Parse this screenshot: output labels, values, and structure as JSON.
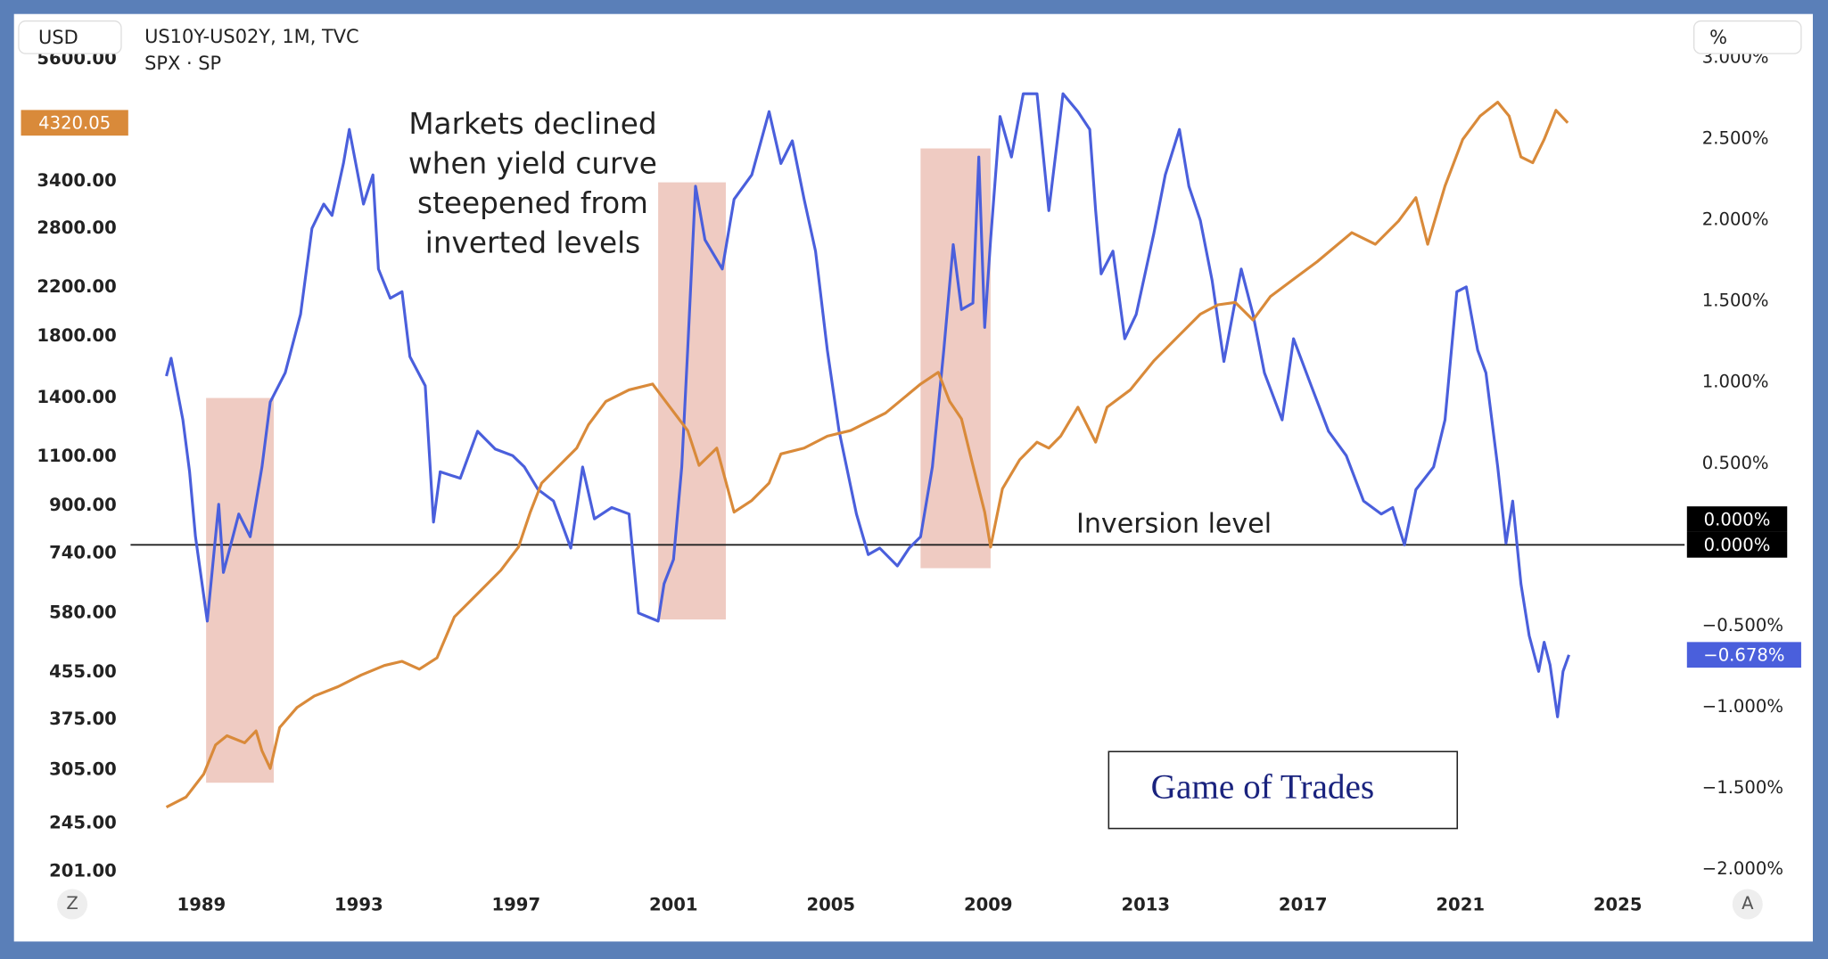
{
  "header": {
    "left_unit": "USD",
    "right_unit": "%",
    "symbol_line": "US10Y-US02Y, 1M, TVC",
    "symbol_line2": "SPX · SP",
    "left_button": "Z",
    "right_button": "A"
  },
  "chart_data": {
    "type": "line",
    "annotation": [
      "Markets declined",
      "when yield curve",
      "steepened from",
      "inverted levels"
    ],
    "watermark": "Game of Trades",
    "xlim": [
      1987.2,
      2026.7
    ],
    "xticks": [
      1989,
      1993,
      1997,
      2001,
      2005,
      2009,
      2013,
      2017,
      2021,
      2025
    ],
    "ylim": [
      190,
      6650
    ],
    "ylog": true,
    "yticks": [
      {
        "value": 201,
        "label": "201.00"
      },
      {
        "value": 245,
        "label": "245.00"
      },
      {
        "value": 305,
        "label": "305.00"
      },
      {
        "value": 375,
        "label": "375.00"
      },
      {
        "value": 455,
        "label": "455.00"
      },
      {
        "value": 580,
        "label": "580.00"
      },
      {
        "value": 740,
        "label": "740.00"
      },
      {
        "value": 900,
        "label": "900.00"
      },
      {
        "value": 1100,
        "label": "1100.00"
      },
      {
        "value": 1400,
        "label": "1400.00"
      },
      {
        "value": 1800,
        "label": "1800.00"
      },
      {
        "value": 2200,
        "label": "2200.00"
      },
      {
        "value": 2800,
        "label": "2800.00"
      },
      {
        "value": 3400,
        "label": "3400.00"
      },
      {
        "value": 5600,
        "label": "5600.00"
      }
    ],
    "y2lim": [
      -2.1,
      3.25
    ],
    "y2ticks": [
      {
        "value": -2,
        "label": "−2.000%"
      },
      {
        "value": -1.5,
        "label": "−1.500%"
      },
      {
        "value": -1,
        "label": "−1.000%"
      },
      {
        "value": -0.5,
        "label": "−0.500%"
      },
      {
        "value": 0.5,
        "label": "0.500%"
      },
      {
        "value": 1,
        "label": "1.000%"
      },
      {
        "value": 1.5,
        "label": "1.500%"
      },
      {
        "value": 2,
        "label": "2.000%"
      },
      {
        "value": 2.5,
        "label": "2.500%"
      },
      {
        "value": 3,
        "label": "3.000%"
      }
    ],
    "grid": false,
    "reference_line": {
      "value": 0,
      "label": "Inversion level",
      "axis": "y2",
      "color": "#222222"
    },
    "level_labels": [
      {
        "value": 0,
        "label": "0.000%"
      },
      {
        "value": 0,
        "label": "0.000%"
      }
    ],
    "shaded_periods": [
      {
        "x": [
          1989.12,
          1990.84
        ],
        "y2": [
          -1.466,
          0.905
        ]
      },
      {
        "x": [
          2000.61,
          2002.33
        ],
        "y2": [
          -0.46,
          2.234
        ]
      },
      {
        "x": [
          2007.28,
          2009.06
        ],
        "y2": [
          -0.144,
          2.443
        ]
      }
    ],
    "shade_color": "#e9b9ad",
    "series": [
      {
        "name": "US10Y-US02Y",
        "color": "#4a5fdc",
        "axis": "y2",
        "last_label": "−0.678%",
        "x": [
          1988.11,
          1988.23,
          1988.53,
          1988.7,
          1988.85,
          1989.15,
          1989.44,
          1989.56,
          1989.8,
          1989.95,
          1990.24,
          1990.54,
          1990.75,
          1991.13,
          1991.52,
          1991.81,
          1992.11,
          1992.32,
          1992.61,
          1992.76,
          1993.12,
          1993.36,
          1993.5,
          1993.8,
          1994.1,
          1994.3,
          1994.69,
          1994.9,
          1995.07,
          1995.58,
          1996.02,
          1996.47,
          1996.91,
          1997.21,
          1997.56,
          1997.95,
          1998.39,
          1998.69,
          1998.99,
          1999.43,
          1999.87,
          2000.11,
          2000.61,
          2000.76,
          2001.0,
          2001.21,
          2001.36,
          2001.56,
          2001.8,
          2002.24,
          2002.54,
          2002.99,
          2003.43,
          2003.73,
          2004.02,
          2004.32,
          2004.61,
          2004.91,
          2005.21,
          2005.65,
          2005.95,
          2006.24,
          2006.69,
          2006.99,
          2007.28,
          2007.58,
          2007.87,
          2008.11,
          2008.32,
          2008.61,
          2008.76,
          2008.91,
          2009.06,
          2009.3,
          2009.59,
          2009.89,
          2010.24,
          2010.54,
          2010.9,
          2011.28,
          2011.58,
          2011.73,
          2011.87,
          2012.17,
          2012.47,
          2012.76,
          2013.21,
          2013.5,
          2013.86,
          2014.1,
          2014.39,
          2014.69,
          2014.99,
          2015.43,
          2015.73,
          2016.02,
          2016.47,
          2016.76,
          2017.21,
          2017.65,
          2018.1,
          2018.54,
          2018.99,
          2019.28,
          2019.58,
          2019.87,
          2020.32,
          2020.61,
          2020.91,
          2021.15,
          2021.44,
          2021.65,
          2021.95,
          2022.16,
          2022.33,
          2022.54,
          2022.75,
          2022.99,
          2023.13,
          2023.28,
          2023.47,
          2023.61,
          2023.76
        ],
        "values": [
          1.04,
          1.15,
          0.77,
          0.45,
          0.05,
          -0.47,
          0.25,
          -0.17,
          0.05,
          0.19,
          0.05,
          0.48,
          0.88,
          1.06,
          1.42,
          1.95,
          2.1,
          2.03,
          2.35,
          2.56,
          2.1,
          2.28,
          1.7,
          1.52,
          1.56,
          1.16,
          0.98,
          0.14,
          0.45,
          0.41,
          0.7,
          0.59,
          0.55,
          0.48,
          0.34,
          0.27,
          -0.02,
          0.48,
          0.16,
          0.23,
          0.19,
          -0.42,
          -0.47,
          -0.24,
          -0.09,
          0.48,
          1.2,
          2.21,
          1.88,
          1.7,
          2.13,
          2.28,
          2.67,
          2.35,
          2.49,
          2.13,
          1.81,
          1.2,
          0.7,
          0.19,
          -0.06,
          -0.02,
          -0.13,
          -0.02,
          0.05,
          0.48,
          1.2,
          1.85,
          1.45,
          1.49,
          2.39,
          1.34,
          1.88,
          2.64,
          2.39,
          2.78,
          2.78,
          2.06,
          2.78,
          2.67,
          2.56,
          2.06,
          1.67,
          1.81,
          1.27,
          1.42,
          1.92,
          2.28,
          2.56,
          2.21,
          2.0,
          1.63,
          1.13,
          1.7,
          1.42,
          1.06,
          0.77,
          1.27,
          0.98,
          0.7,
          0.55,
          0.27,
          0.19,
          0.23,
          0.0,
          0.34,
          0.48,
          0.77,
          1.56,
          1.59,
          1.2,
          1.06,
          0.48,
          0.01,
          0.27,
          -0.24,
          -0.56,
          -0.78,
          -0.6,
          -0.74,
          -1.06,
          -0.78,
          -0.678
        ]
      },
      {
        "name": "SPX",
        "color": "#d98a3a",
        "axis": "y",
        "last_label": "4320.05",
        "x": [
          1988.11,
          1988.61,
          1989.06,
          1989.36,
          1989.65,
          1990.1,
          1990.39,
          1990.54,
          1990.75,
          1990.99,
          1991.43,
          1991.87,
          1992.47,
          1993.06,
          1993.65,
          1994.1,
          1994.54,
          1994.99,
          1995.43,
          1996.02,
          1996.61,
          1997.06,
          1997.36,
          1997.65,
          1998.1,
          1998.54,
          1998.84,
          1999.28,
          1999.87,
          2000.47,
          2000.91,
          2001.36,
          2001.65,
          2002.1,
          2002.54,
          2002.99,
          2003.43,
          2003.73,
          2004.32,
          2004.91,
          2005.5,
          2006.39,
          2007.28,
          2007.73,
          2008.02,
          2008.32,
          2008.61,
          2008.91,
          2009.06,
          2009.36,
          2009.8,
          2010.24,
          2010.54,
          2010.84,
          2011.28,
          2011.58,
          2011.73,
          2012.02,
          2012.61,
          2013.21,
          2013.8,
          2014.39,
          2014.84,
          2015.28,
          2015.73,
          2016.17,
          2016.76,
          2017.36,
          2018.24,
          2018.84,
          2019.43,
          2019.87,
          2020.17,
          2020.61,
          2021.06,
          2021.5,
          2021.95,
          2022.24,
          2022.54,
          2022.84,
          2023.13,
          2023.43,
          2023.73
        ],
        "values": [
          262,
          273,
          300,
          338,
          351,
          341,
          358,
          330,
          307,
          363,
          394,
          413,
          429,
          450,
          468,
          476,
          461,
          483,
          571,
          628,
          691,
          760,
          877,
          988,
          1062,
          1140,
          1255,
          1380,
          1447,
          1482,
          1348,
          1225,
          1062,
          1140,
          877,
          920,
          988,
          1113,
          1140,
          1197,
          1225,
          1316,
          1482,
          1555,
          1380,
          1285,
          1062,
          877,
          760,
          965,
          1087,
          1168,
          1140,
          1197,
          1348,
          1225,
          1168,
          1348,
          1447,
          1630,
          1794,
          1973,
          2050,
          2070,
          1926,
          2120,
          2277,
          2446,
          2755,
          2627,
          2890,
          3180,
          2627,
          3335,
          4036,
          4440,
          4701,
          4440,
          3757,
          3668,
          4036,
          4547,
          4320.05
        ]
      }
    ]
  }
}
